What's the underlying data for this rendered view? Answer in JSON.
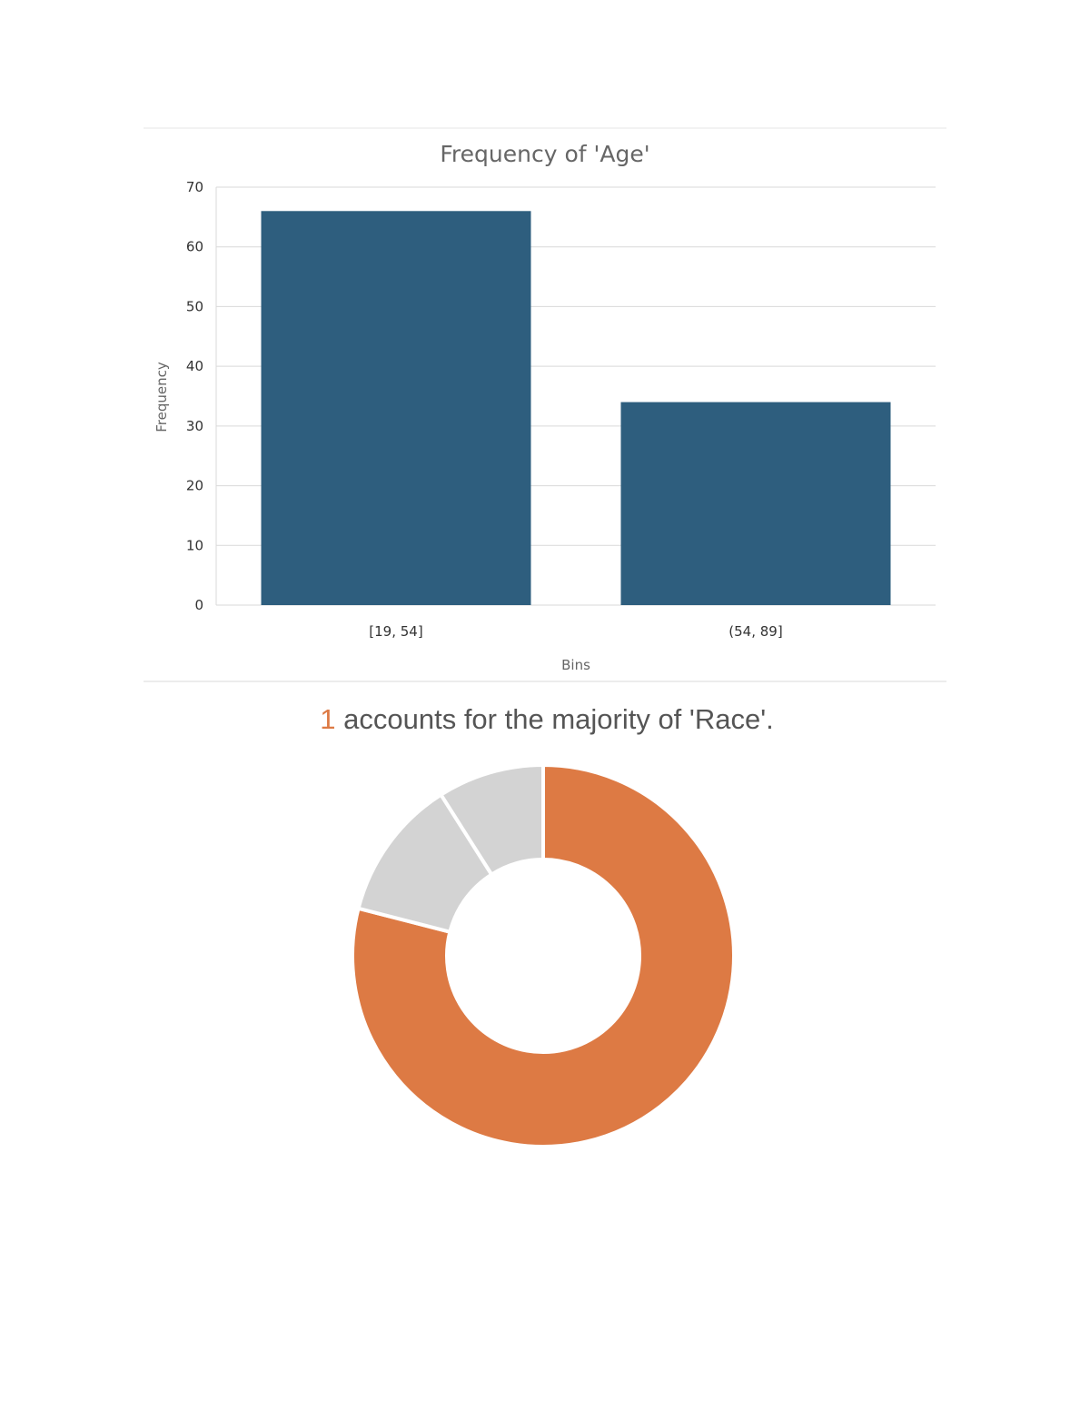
{
  "chart_data": [
    {
      "type": "bar",
      "title": "Frequency of 'Age'",
      "xlabel": "Bins",
      "ylabel": "Frequency",
      "categories": [
        "[19, 54]",
        "(54, 89]"
      ],
      "values": [
        66,
        34
      ],
      "ylim": [
        0,
        70
      ],
      "yticks": [
        0,
        10,
        20,
        30,
        40,
        50,
        60,
        70
      ],
      "grid": true,
      "bar_color": "#2e5e7e",
      "grid_color": "#d9d9d9"
    },
    {
      "type": "pie",
      "variant": "donut",
      "title_highlight": "1",
      "title_rest": " accounts for the majority of 'Race'.",
      "highlight_color": "#dd7a44",
      "other_color": "#d3d3d3",
      "values": [
        79,
        12,
        9
      ],
      "colors": [
        "#dd7a44",
        "#d3d3d3",
        "#d3d3d3"
      ]
    }
  ]
}
